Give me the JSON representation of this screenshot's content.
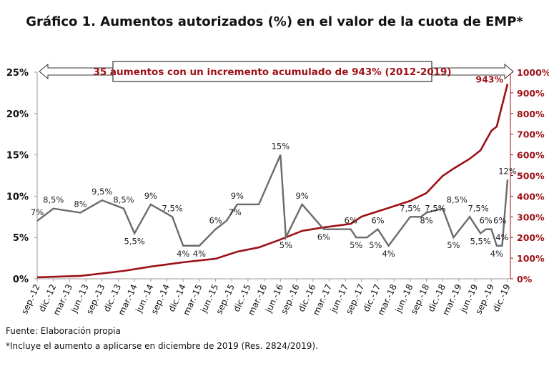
{
  "chart_data": {
    "type": "line",
    "title": "Gráfico 1. Aumentos autorizados (%) en el valor de la cuota de EMP*",
    "annotation": "35 aumentos con un incremento acumulado de 943% (2012-2019)",
    "colors": {
      "increase": "#6b6b6b",
      "cumulative": "#9c1016",
      "right_axis": "#9c1016"
    },
    "x_ticks": [
      "sep.-12",
      "dic.-12",
      "mar.-13",
      "jun.-13",
      "sep.-13",
      "dic.-13",
      "mar.-14",
      "jun.-14",
      "sep.-14",
      "dic.-14",
      "mar.-15",
      "jun.-15",
      "sep.-15",
      "dic.-15",
      "mar.-16",
      "jun.-16",
      "sep.-16",
      "dic.-16",
      "mar.-17",
      "jun.-17",
      "sep.-17",
      "dic.-17",
      "mar.-18",
      "jun.-18",
      "sep.-18",
      "dic.-18",
      "mar.-19",
      "jun.-19",
      "sep.-19",
      "dic.-19"
    ],
    "x_range": [
      "2012-09",
      "2019-12"
    ],
    "y_left": {
      "range": [
        0,
        25
      ],
      "ticks": [
        "0%",
        "5%",
        "10%",
        "15%",
        "20%",
        "25%"
      ],
      "values": [
        0,
        5,
        10,
        15,
        20,
        25
      ]
    },
    "y_right": {
      "range": [
        0,
        1000
      ],
      "ticks": [
        "0%",
        "100%",
        "200%",
        "300%",
        "400%",
        "500%",
        "600%",
        "700%",
        "800%",
        "900%",
        "1000%"
      ],
      "values": [
        0,
        100,
        200,
        300,
        400,
        500,
        600,
        700,
        800,
        900,
        1000
      ]
    },
    "grid": false,
    "series": [
      {
        "axis": "left",
        "points": [
          {
            "date": "2012-09",
            "value": 7,
            "label": "7%"
          },
          {
            "date": "2012-12",
            "value": 8.5,
            "label": "8,5%"
          },
          {
            "date": "2013-05",
            "value": 8,
            "label": "8%"
          },
          {
            "date": "2013-09",
            "value": 9.5,
            "label": "9,5%"
          },
          {
            "date": "2014-01",
            "value": 8.5,
            "label": "8,5%"
          },
          {
            "date": "2014-03",
            "value": 5.5,
            "label": "5,5%"
          },
          {
            "date": "2014-06",
            "value": 9,
            "label": "9%"
          },
          {
            "date": "2014-10",
            "value": 7.5,
            "label": "7,5%"
          },
          {
            "date": "2014-12",
            "value": 4,
            "label": "4%"
          },
          {
            "date": "2015-03",
            "value": 4,
            "label": "4%"
          },
          {
            "date": "2015-06",
            "value": 6,
            "label": "6%"
          },
          {
            "date": "2015-08",
            "value": 7,
            "label": "7%"
          },
          {
            "date": "2015-10",
            "value": 9,
            "label": "9%"
          },
          {
            "date": "2016-02",
            "value": 9,
            "label": ""
          },
          {
            "date": "2016-06",
            "value": 15,
            "label": "15%"
          },
          {
            "date": "2016-07",
            "value": 5,
            "label": "5%"
          },
          {
            "date": "2016-10",
            "value": 9,
            "label": "9%"
          },
          {
            "date": "2017-02",
            "value": 6,
            "label": "6%"
          },
          {
            "date": "2017-07",
            "value": 6,
            "label": "6%"
          },
          {
            "date": "2017-08",
            "value": 5,
            "label": "5%"
          },
          {
            "date": "2017-10",
            "value": 5,
            "label": "5%"
          },
          {
            "date": "2017-12",
            "value": 6,
            "label": "6%"
          },
          {
            "date": "2018-02",
            "value": 4,
            "label": "4%"
          },
          {
            "date": "2018-06",
            "value": 7.5,
            "label": "7,5%"
          },
          {
            "date": "2018-08",
            "value": 7.5,
            "label": "7,5%"
          },
          {
            "date": "2018-09",
            "value": 8,
            "label": "8%"
          },
          {
            "date": "2018-12",
            "value": 8.5,
            "label": "8,5%"
          },
          {
            "date": "2019-02",
            "value": 5,
            "label": "5%"
          },
          {
            "date": "2019-05",
            "value": 7.5,
            "label": "7,5%"
          },
          {
            "date": "2019-07",
            "value": 5.5,
            "label": "5,5%"
          },
          {
            "date": "2019-08",
            "value": 6,
            "label": "6%"
          },
          {
            "date": "2019-09",
            "value": 6,
            "label": "6%"
          },
          {
            "date": "2019-10",
            "value": 4,
            "label": "4%"
          },
          {
            "date": "2019-11",
            "value": 4,
            "label": "4%"
          },
          {
            "date": "2019-12",
            "value": 12,
            "label": "12%"
          }
        ]
      },
      {
        "axis": "right",
        "points": [
          {
            "date": "2012-09",
            "value": 7
          },
          {
            "date": "2013-05",
            "value": 14
          },
          {
            "date": "2014-01",
            "value": 38
          },
          {
            "date": "2014-06",
            "value": 59
          },
          {
            "date": "2014-12",
            "value": 80
          },
          {
            "date": "2015-06",
            "value": 97
          },
          {
            "date": "2015-10",
            "value": 131
          },
          {
            "date": "2016-02",
            "value": 152
          },
          {
            "date": "2016-06",
            "value": 190
          },
          {
            "date": "2016-10",
            "value": 232
          },
          {
            "date": "2017-02",
            "value": 249
          },
          {
            "date": "2017-07",
            "value": 266
          },
          {
            "date": "2017-09",
            "value": 301
          },
          {
            "date": "2018-02",
            "value": 343
          },
          {
            "date": "2018-06",
            "value": 377
          },
          {
            "date": "2018-09",
            "value": 415
          },
          {
            "date": "2018-12",
            "value": 498
          },
          {
            "date": "2019-02",
            "value": 533
          },
          {
            "date": "2019-05",
            "value": 581
          },
          {
            "date": "2019-07",
            "value": 622
          },
          {
            "date": "2019-09",
            "value": 716
          },
          {
            "date": "2019-10",
            "value": 737
          },
          {
            "date": "2019-12",
            "value": 943
          }
        ],
        "end_label": "943%"
      }
    ]
  },
  "footnotes": {
    "source": "Fuente: Elaboración propia",
    "note": "*Incluye el aumento a aplicarse en diciembre de 2019 (Res. 2824/2019)."
  }
}
